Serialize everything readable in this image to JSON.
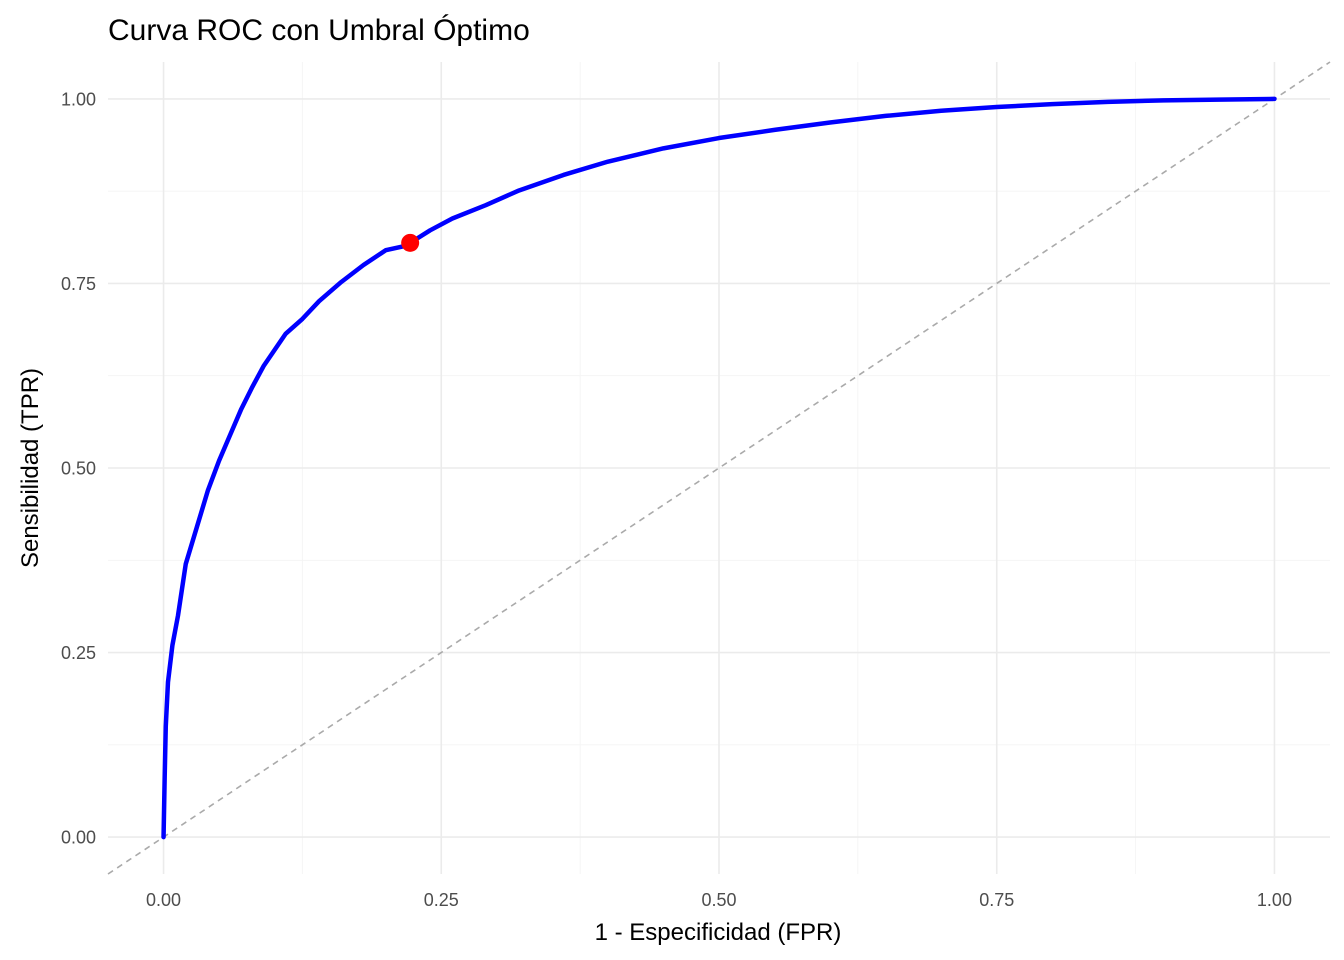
{
  "chart_data": {
    "type": "line",
    "title": "Curva ROC con Umbral Óptimo",
    "xlabel": "1 - Especificidad (FPR)",
    "ylabel": "Sensibilidad (TPR)",
    "xlim": [
      -0.05,
      1.05
    ],
    "ylim": [
      -0.05,
      1.05
    ],
    "x_ticks": [
      0,
      0.25,
      0.5,
      0.75,
      1
    ],
    "x_tick_labels": [
      "0.00",
      "0.25",
      "0.50",
      "0.75",
      "1.00"
    ],
    "y_ticks": [
      0,
      0.25,
      0.5,
      0.75,
      1
    ],
    "y_tick_labels": [
      "0.00",
      "0.25",
      "0.50",
      "0.75",
      "1.00"
    ],
    "grid": true,
    "series": [
      {
        "color": "#0000ff",
        "x": [
          0.0,
          0.001,
          0.002,
          0.004,
          0.008,
          0.013,
          0.02,
          0.03,
          0.04,
          0.05,
          0.06,
          0.07,
          0.08,
          0.09,
          0.1,
          0.11,
          0.125,
          0.14,
          0.16,
          0.18,
          0.2,
          0.215,
          0.222,
          0.24,
          0.26,
          0.29,
          0.32,
          0.36,
          0.4,
          0.45,
          0.5,
          0.55,
          0.6,
          0.65,
          0.7,
          0.75,
          0.8,
          0.85,
          0.9,
          0.95,
          1.0
        ],
        "y": [
          0.0,
          0.08,
          0.15,
          0.21,
          0.26,
          0.3,
          0.37,
          0.42,
          0.47,
          0.51,
          0.545,
          0.58,
          0.61,
          0.638,
          0.66,
          0.682,
          0.702,
          0.726,
          0.752,
          0.775,
          0.795,
          0.8,
          0.805,
          0.822,
          0.838,
          0.856,
          0.876,
          0.897,
          0.915,
          0.933,
          0.947,
          0.958,
          0.968,
          0.977,
          0.984,
          0.989,
          0.993,
          0.996,
          0.998,
          0.999,
          1.0
        ]
      }
    ],
    "reference_line": {
      "x": [
        -0.05,
        1.05
      ],
      "y": [
        -0.05,
        1.05
      ],
      "color": "#aaaaaa",
      "style": "dashed"
    },
    "highlight_point": {
      "x": 0.222,
      "y": 0.805,
      "color": "#ff0000"
    }
  }
}
